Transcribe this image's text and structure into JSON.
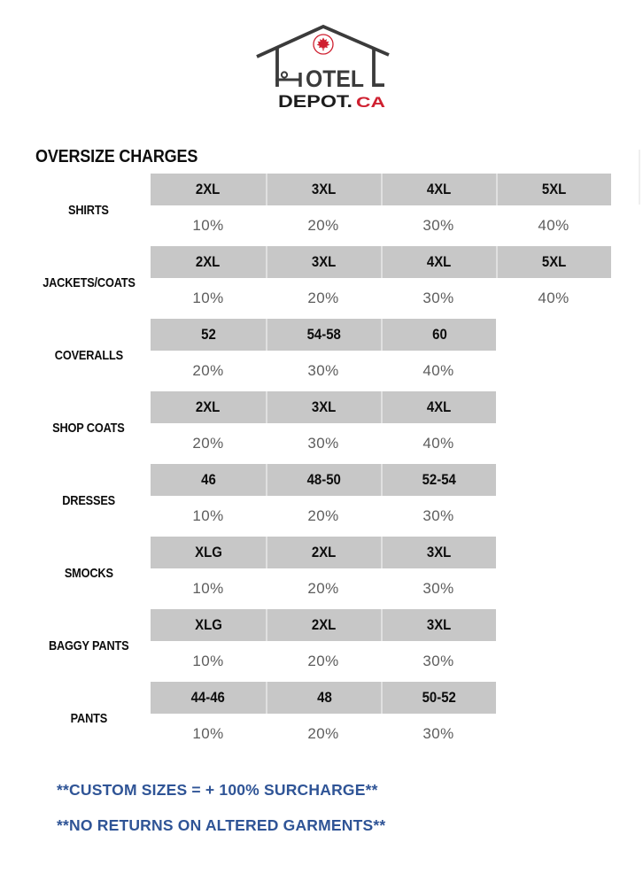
{
  "logo": {
    "otel": "OTEL",
    "depot": "DEPOT.",
    "ca": "CA",
    "colors": {
      "dark": "#3b3b3b",
      "red": "#cf2030",
      "depot_text": "#1c1c1c"
    }
  },
  "title": "OVERSIZE CHARGES",
  "table": {
    "sections": [
      {
        "label": "SHIRTS",
        "sizes": [
          "2XL",
          "3XL",
          "4XL",
          "5XL"
        ],
        "charges": [
          "10%",
          "20%",
          "30%",
          "40%"
        ]
      },
      {
        "label": "JACKETS/COATS",
        "sizes": [
          "2XL",
          "3XL",
          "4XL",
          "5XL"
        ],
        "charges": [
          "10%",
          "20%",
          "30%",
          "40%"
        ]
      },
      {
        "label": "COVERALLS",
        "sizes": [
          "52",
          "54-58",
          "60"
        ],
        "charges": [
          "20%",
          "30%",
          "40%"
        ]
      },
      {
        "label": "SHOP COATS",
        "sizes": [
          "2XL",
          "3XL",
          "4XL"
        ],
        "charges": [
          "20%",
          "30%",
          "40%"
        ]
      },
      {
        "label": "DRESSES",
        "sizes": [
          "46",
          "48-50",
          "52-54"
        ],
        "charges": [
          "10%",
          "20%",
          "30%"
        ]
      },
      {
        "label": "SMOCKS",
        "sizes": [
          "XLG",
          "2XL",
          "3XL"
        ],
        "charges": [
          "10%",
          "20%",
          "30%"
        ]
      },
      {
        "label": "BAGGY PANTS",
        "sizes": [
          "XLG",
          "2XL",
          "3XL"
        ],
        "charges": [
          "10%",
          "20%",
          "30%"
        ]
      },
      {
        "label": "PANTS",
        "sizes": [
          "44-46",
          "48",
          "50-52"
        ],
        "charges": [
          "10%",
          "20%",
          "30%"
        ]
      }
    ]
  },
  "notes": [
    "**CUSTOM SIZES = + 100% SURCHARGE**",
    "**NO RETURNS ON ALTERED GARMENTS**"
  ],
  "colors": {
    "band_gray": "#c7c7c7",
    "charge_text_gray": "#5d5d5d",
    "note_blue": "#2f5496",
    "logo_dark": "#3b3b3b",
    "logo_red": "#cf2030"
  }
}
